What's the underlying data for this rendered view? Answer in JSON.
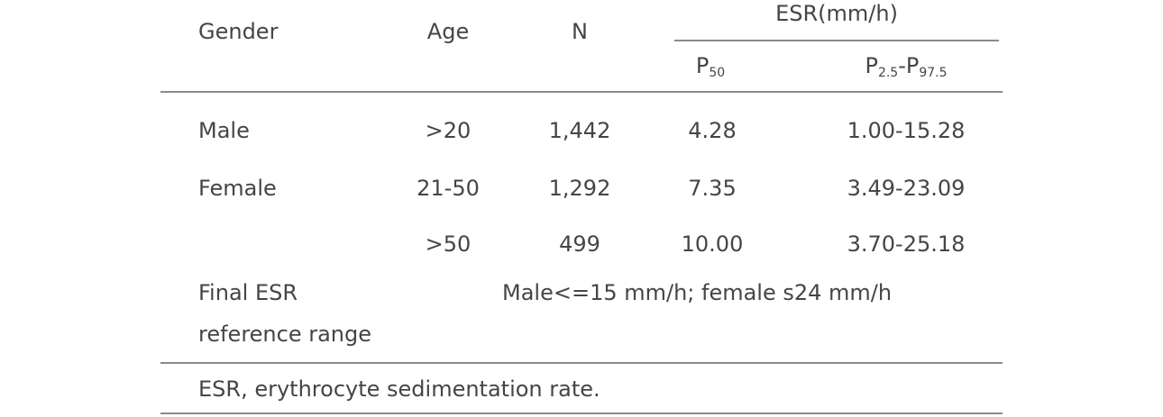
{
  "table": {
    "headers": {
      "gender": "Gender",
      "age": "Age",
      "n": "N",
      "esr_group": "ESR(mm/h)",
      "p50": {
        "main": "P",
        "sub": "50"
      },
      "range": {
        "p1": "P",
        "sub1": "2.5",
        "dash": "-",
        "p2": "P",
        "sub2": "97.5"
      }
    },
    "rows": [
      {
        "gender": "Male",
        "age": ">20",
        "n": "1,442",
        "p50": "4.28",
        "range": "1.00-15.28"
      },
      {
        "gender": "Female",
        "age": "21-50",
        "n": "1,292",
        "p50": "7.35",
        "range": "3.49-23.09"
      },
      {
        "gender": "",
        "age": ">50",
        "n": "499",
        "p50": "10.00",
        "range": "3.70-25.18"
      }
    ],
    "final": {
      "label_line1": "Final ESR",
      "label_line2": "reference range",
      "value": "Male<=15 mm/h; female s24 mm/h"
    },
    "footnote": "ESR, erythrocyte sedimentation rate."
  }
}
